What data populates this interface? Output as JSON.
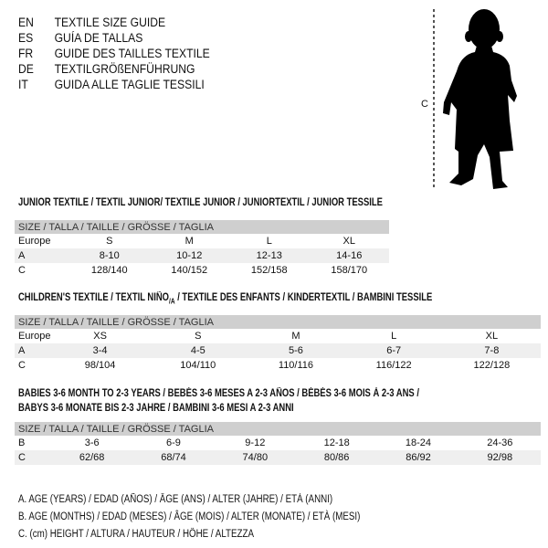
{
  "languages": [
    {
      "code": "EN",
      "text": "TEXTILE SIZE GUIDE"
    },
    {
      "code": "ES",
      "text": "GUÍA DE TALLAS"
    },
    {
      "code": "FR",
      "text": "GUIDE DES TAILLES TEXTILE"
    },
    {
      "code": "DE",
      "text": "TEXTILGRÖßENFÜHRUNG"
    },
    {
      "code": "IT",
      "text": "GUIDA ALLE TAGLIE TESSILI"
    }
  ],
  "figure": {
    "icon": "child-silhouette-icon",
    "height_label": "C"
  },
  "junior": {
    "title": "JUNIOR TEXTILE / TEXTIL JUNIOR/ TEXTILE JUNIOR / JUNIORTEXTIL / JUNIOR TESSILE",
    "header": "SIZE / TALLA / TAILLE / GRÖSSE / TAGLIA",
    "rows": [
      {
        "label": "Europe",
        "values": [
          "S",
          "M",
          "L",
          "XL"
        ]
      },
      {
        "label": "A",
        "values": [
          "8-10",
          "10-12",
          "12-13",
          "14-16"
        ]
      },
      {
        "label": "C",
        "values": [
          "128/140",
          "140/152",
          "152/158",
          "158/170"
        ]
      }
    ]
  },
  "children": {
    "title_main": "CHILDREN'S TEXTILE / TEXTIL NIÑO",
    "title_sub": "/A",
    "title_rest": " / TEXTILE DES ENFANTS / KINDERTEXTIL / BAMBINI TESSILE",
    "header": "SIZE / TALLA / TAILLE / GRÖSSE / TAGLIA",
    "rows": [
      {
        "label": "Europe",
        "values": [
          "XS",
          "S",
          "M",
          "L",
          "XL"
        ]
      },
      {
        "label": "A",
        "values": [
          "3-4",
          "4-5",
          "5-6",
          "6-7",
          "7-8"
        ]
      },
      {
        "label": "C",
        "values": [
          "98/104",
          "104/110",
          "110/116",
          "116/122",
          "122/128"
        ]
      }
    ]
  },
  "babies": {
    "title_line1": "BABIES 3-6 MONTH TO 2-3 YEARS / BEBÉS 3-6 MESES A 2-3 AÑOS / BÉBÉS 3-6 MOIS À 2-3 ANS /",
    "title_line2": "BABYS 3-6 MONATE BIS 2-3 JAHRE / BAMBINI 3-6 MESI A 2-3 ANNI",
    "header": "SIZE / TALLA / TAILLE / GRÖSSE / TAGLIA",
    "rows": [
      {
        "label": "B",
        "values": [
          "3-6",
          "6-9",
          "9-12",
          "12-18",
          "18-24",
          "24-36"
        ]
      },
      {
        "label": "C",
        "values": [
          "62/68",
          "68/74",
          "74/80",
          "80/86",
          "86/92",
          "92/98"
        ]
      }
    ]
  },
  "legend": [
    "A. AGE (YEARS) / EDAD (AÑOS) / ÂGE (ANS) / ALTER (JAHRE) / ETÀ (ANNI)",
    "B. AGE (MONTHS) / EDAD (MESES) / ÂGE (MOIS) / ALTER (MONATE) / ETÀ (MESI)",
    "C. (cm) HEIGHT / ALTURA / HAUTEUR / HÖHE / ALTEZZA"
  ]
}
